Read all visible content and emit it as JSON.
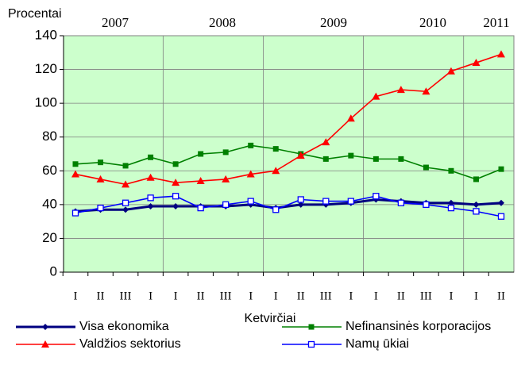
{
  "chart_data": {
    "type": "line",
    "y_label": "Procentai",
    "x_label": "Ketvirčiai",
    "years": [
      "2007",
      "2008",
      "2009",
      "2010",
      "2011"
    ],
    "categories": [
      "I",
      "II",
      "III",
      "I",
      "I",
      "II",
      "III",
      "I",
      "I",
      "II",
      "III",
      "I",
      "I",
      "II",
      "III",
      "I",
      "I",
      "II"
    ],
    "series": [
      {
        "name": "Visa ekonomika",
        "color": "#000080",
        "marker": "diamond",
        "values": [
          36,
          37,
          37,
          39,
          39,
          39,
          39,
          40,
          38,
          40,
          40,
          41,
          43,
          42,
          41,
          41,
          40,
          41
        ]
      },
      {
        "name": "Nefinansinės korporacijos",
        "color": "#008000",
        "marker": "square",
        "values": [
          64,
          65,
          63,
          68,
          64,
          70,
          71,
          75,
          73,
          70,
          67,
          69,
          67,
          67,
          62,
          60,
          55,
          61
        ]
      },
      {
        "name": "Valdžios sektorius",
        "color": "#ff0000",
        "marker": "triangle",
        "values": [
          58,
          55,
          52,
          56,
          53,
          54,
          55,
          58,
          60,
          69,
          77,
          91,
          104,
          108,
          107,
          119,
          124,
          129
        ]
      },
      {
        "name": "Namų ūkiai",
        "color": "#0000ff",
        "marker": "open-square",
        "values": [
          35,
          38,
          41,
          44,
          45,
          38,
          40,
          42,
          37,
          43,
          42,
          42,
          45,
          41,
          40,
          38,
          36,
          33
        ]
      }
    ],
    "ylim": [
      0,
      140
    ],
    "yticks": [
      0,
      20,
      40,
      60,
      80,
      100,
      120,
      140
    ],
    "grid": true
  }
}
